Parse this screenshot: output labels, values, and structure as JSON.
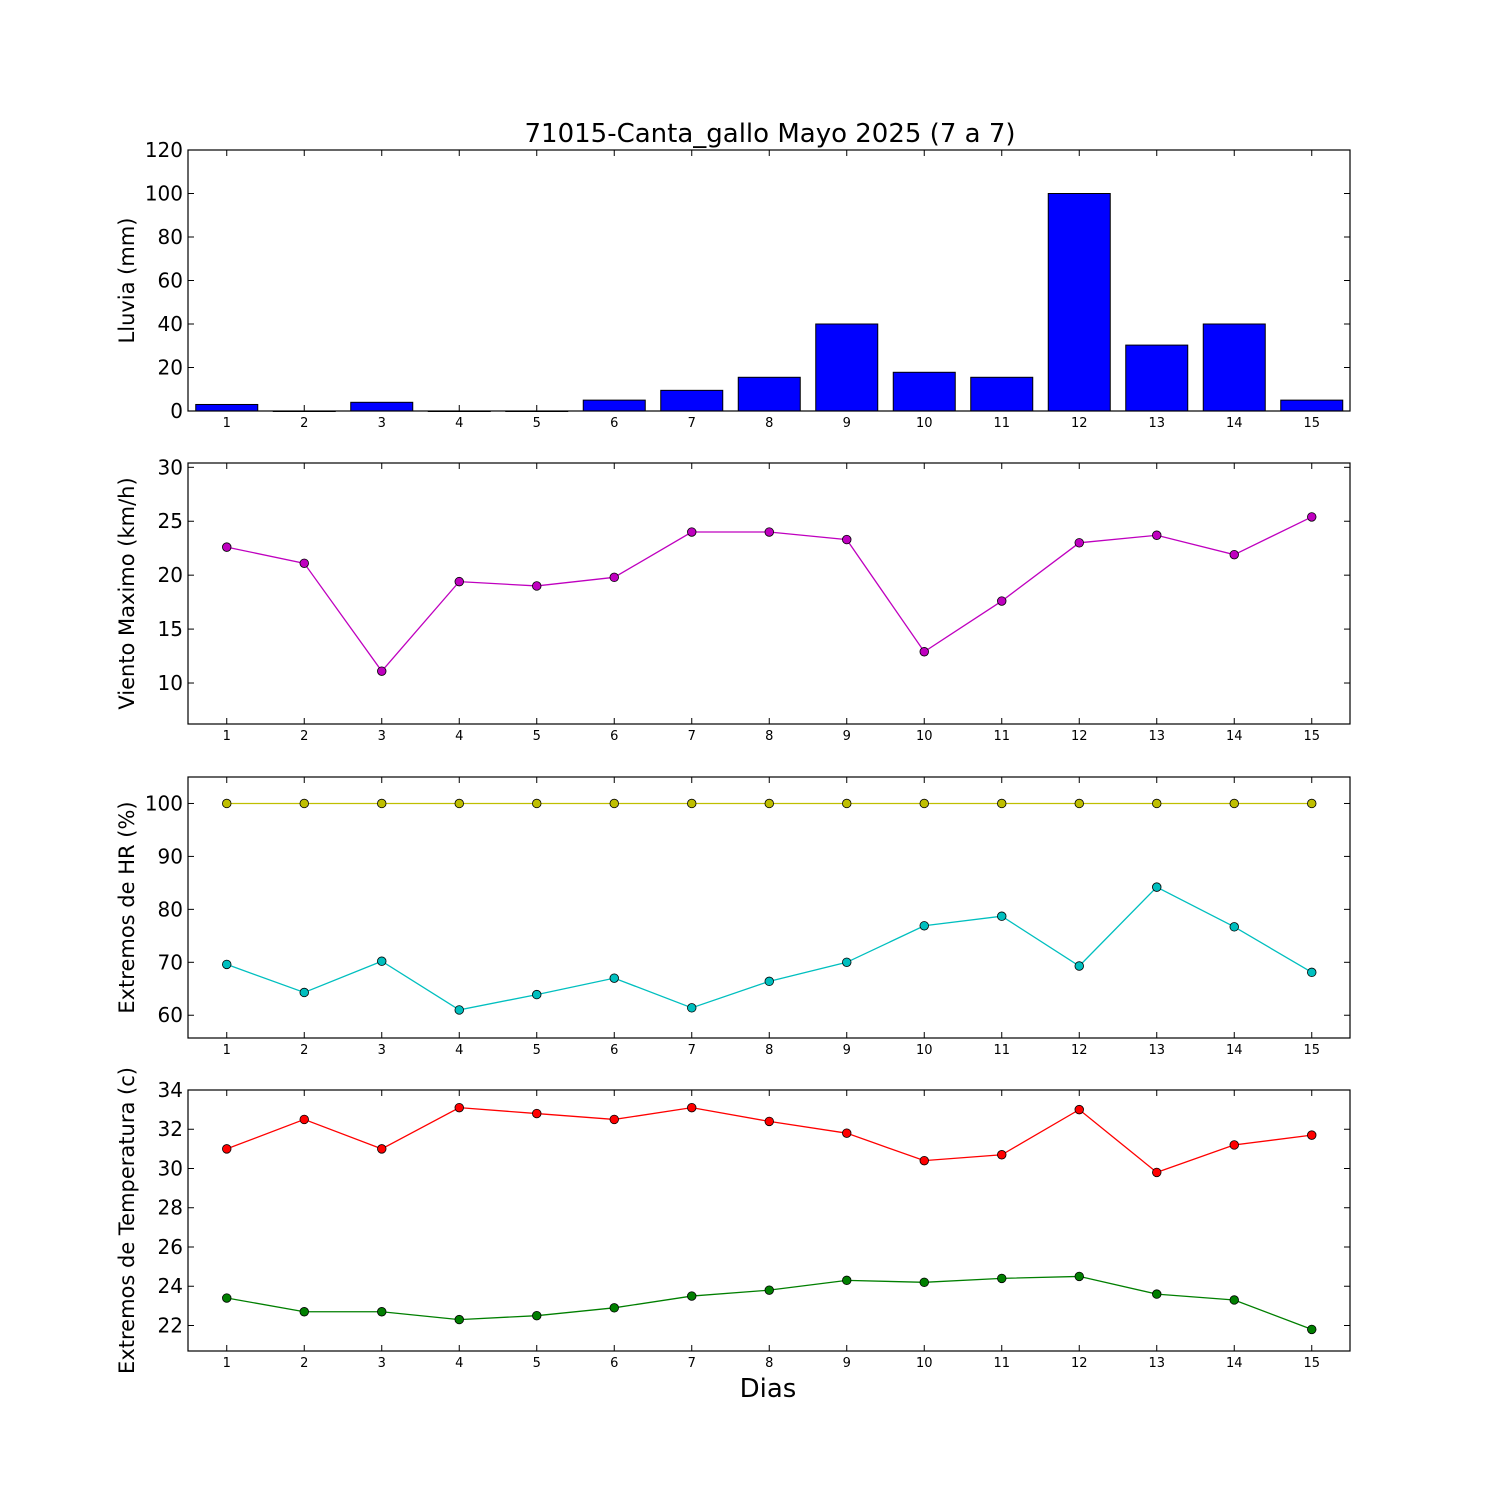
{
  "figure": {
    "title": "71015-Canta_gallo Mayo 2025  (7 a 7)",
    "xlabel": "Dias"
  },
  "chart_data": [
    {
      "type": "bar",
      "ylabel": "Lluvia (mm)",
      "categories": [
        1,
        2,
        3,
        4,
        5,
        6,
        7,
        8,
        9,
        10,
        11,
        12,
        13,
        14,
        15
      ],
      "ylim": [
        0,
        120
      ],
      "yticks": [
        0,
        20,
        40,
        60,
        80,
        100,
        120
      ],
      "series": [
        {
          "color": "#0000ff",
          "values": [
            3,
            0,
            4,
            0,
            0,
            5,
            9.5,
            15.5,
            40,
            17.8,
            15.5,
            100,
            30.3,
            40,
            5
          ]
        }
      ]
    },
    {
      "type": "line",
      "ylabel": "Viento Maximo (km/h)",
      "categories": [
        1,
        2,
        3,
        4,
        5,
        6,
        7,
        8,
        9,
        10,
        11,
        12,
        13,
        14,
        15
      ],
      "ylim": [
        6.2,
        30.4
      ],
      "yticks": [
        10,
        15,
        20,
        25,
        30
      ],
      "series": [
        {
          "color": "#bf00bf",
          "values": [
            22.6,
            21.1,
            11.1,
            19.4,
            19.0,
            19.8,
            24.0,
            24.0,
            23.3,
            12.9,
            17.6,
            23.0,
            23.7,
            21.9,
            25.4
          ]
        }
      ]
    },
    {
      "type": "line",
      "ylabel": "Extremos de HR (%)",
      "categories": [
        1,
        2,
        3,
        4,
        5,
        6,
        7,
        8,
        9,
        10,
        11,
        12,
        13,
        14,
        15
      ],
      "ylim": [
        55.7,
        105
      ],
      "yticks": [
        60,
        70,
        80,
        90,
        100
      ],
      "series": [
        {
          "color": "#bfbf00",
          "values": [
            100,
            100,
            100,
            100,
            100,
            100,
            100,
            100,
            100,
            100,
            100,
            100,
            100,
            100,
            100
          ]
        },
        {
          "color": "#00bfbf",
          "values": [
            69.6,
            64.3,
            70.2,
            61.0,
            63.9,
            67.0,
            61.4,
            66.4,
            70.0,
            76.9,
            78.7,
            69.3,
            84.2,
            76.7,
            68.1
          ]
        }
      ]
    },
    {
      "type": "line",
      "ylabel": "Extremos de Temperatura (c)",
      "categories": [
        1,
        2,
        3,
        4,
        5,
        6,
        7,
        8,
        9,
        10,
        11,
        12,
        13,
        14,
        15
      ],
      "ylim": [
        20.7,
        34
      ],
      "yticks": [
        22,
        24,
        26,
        28,
        30,
        32,
        34
      ],
      "series": [
        {
          "color": "#ff0000",
          "values": [
            31.0,
            32.5,
            31.0,
            33.1,
            32.8,
            32.5,
            33.1,
            32.4,
            31.8,
            30.4,
            30.7,
            33.0,
            29.8,
            31.2,
            31.7
          ]
        },
        {
          "color": "#007f00",
          "values": [
            23.4,
            22.7,
            22.7,
            22.3,
            22.5,
            22.9,
            23.5,
            23.8,
            24.3,
            24.2,
            24.4,
            24.5,
            23.6,
            23.3,
            21.8
          ]
        }
      ]
    }
  ]
}
